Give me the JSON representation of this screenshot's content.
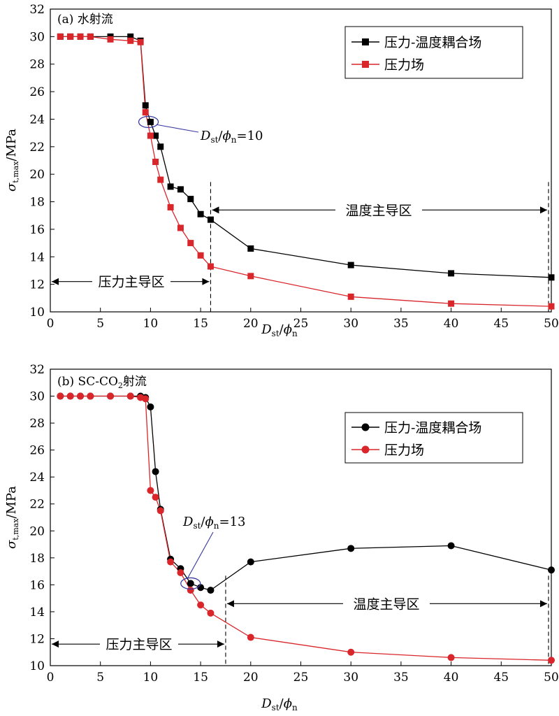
{
  "chart_data": [
    {
      "type": "line",
      "panel_label": "(a) 水射流",
      "xlabel_main": "D",
      "xlabel_sub": "st",
      "xlabel_slash": "/",
      "xlabel_phi": "ϕ",
      "xlabel_phi_sub": "n",
      "ylabel_sigma": "σ",
      "ylabel_sub": "t,max",
      "ylabel_unit": "/MPa",
      "xlim": [
        0,
        50
      ],
      "ylim": [
        10,
        32
      ],
      "xticks": [
        0,
        5,
        10,
        15,
        20,
        25,
        30,
        35,
        40,
        45,
        50
      ],
      "yticks": [
        10,
        12,
        14,
        16,
        18,
        20,
        22,
        24,
        26,
        28,
        30,
        32
      ],
      "grid": false,
      "legend_position": "top-right",
      "marker": "square",
      "series": [
        {
          "name": "压力-温度耦合场",
          "color": "#000000",
          "x": [
            1,
            2,
            3,
            4,
            6,
            8,
            9,
            9.5,
            10,
            10.5,
            11,
            12,
            13,
            14,
            15,
            16,
            20,
            30,
            40,
            50
          ],
          "y": [
            30,
            30,
            30,
            30,
            30,
            30,
            29.7,
            25,
            23.8,
            22.8,
            22,
            19.1,
            18.9,
            18.2,
            17.1,
            16.7,
            14.6,
            13.4,
            12.8,
            12.5
          ]
        },
        {
          "name": "压力场",
          "color": "#d9262b",
          "x": [
            1,
            2,
            3,
            4,
            6,
            8,
            9,
            9.5,
            10,
            10.5,
            11,
            12,
            13,
            14,
            15,
            16,
            20,
            30,
            40,
            50
          ],
          "y": [
            30,
            30,
            30,
            30,
            29.8,
            29.7,
            29.6,
            24.5,
            22.8,
            20.9,
            19.6,
            17.6,
            16.1,
            15,
            14.1,
            13.3,
            12.6,
            11.1,
            10.6,
            10.4
          ]
        }
      ],
      "annotations": {
        "point_main": "D",
        "point_sub": "st",
        "point_slash": "/",
        "point_phi": "ϕ",
        "point_phi_sub": "n",
        "point_value": "=10",
        "point_xy": [
          9.8,
          23.8
        ],
        "pressure_region": "压力主导区",
        "temp_region": "温度主导区",
        "divider_x": 16,
        "pressure_arrow_y": 12.2,
        "temp_arrow_y": 17.4
      }
    },
    {
      "type": "line",
      "panel_label_pre": "(b) SC-CO",
      "panel_label_sub": "2",
      "panel_label_post": "射流",
      "xlabel_main": "D",
      "xlabel_sub": "st",
      "xlabel_slash": "/",
      "xlabel_phi": "ϕ",
      "xlabel_phi_sub": "n",
      "ylabel_sigma": "σ",
      "ylabel_sub": "t,max",
      "ylabel_unit": "/MPa",
      "xlim": [
        0,
        50
      ],
      "ylim": [
        10,
        32
      ],
      "xticks": [
        0,
        5,
        10,
        15,
        20,
        25,
        30,
        35,
        40,
        45,
        50
      ],
      "yticks": [
        10,
        12,
        14,
        16,
        18,
        20,
        22,
        24,
        26,
        28,
        30,
        32
      ],
      "grid": false,
      "legend_position": "top-right",
      "marker": "circle",
      "series": [
        {
          "name": "压力-温度耦合场",
          "color": "#000000",
          "x": [
            1,
            2,
            3,
            4,
            6,
            8,
            9,
            9.5,
            10,
            10.5,
            11,
            12,
            13,
            14,
            15,
            16,
            20,
            30,
            40,
            50
          ],
          "y": [
            30,
            30,
            30,
            30,
            30,
            30,
            30,
            29.9,
            29.2,
            24.4,
            21.6,
            17.9,
            17.2,
            16.1,
            15.8,
            15.6,
            17.7,
            18.7,
            18.9,
            17.1
          ]
        },
        {
          "name": "压力场",
          "color": "#d9262b",
          "x": [
            1,
            2,
            3,
            4,
            6,
            8,
            9,
            9.5,
            10,
            10.5,
            11,
            12,
            13,
            14,
            15,
            16,
            20,
            30,
            40,
            50
          ],
          "y": [
            30,
            30,
            30,
            30,
            30,
            30,
            29.9,
            29.8,
            23,
            22.5,
            21.5,
            17.7,
            16.9,
            15.6,
            14.5,
            13.9,
            12.1,
            11,
            10.6,
            10.4
          ]
        }
      ],
      "annotations": {
        "point_main": "D",
        "point_sub": "st",
        "point_slash": "/",
        "point_phi": "ϕ",
        "point_phi_sub": "n",
        "point_value": "=13",
        "point_xy": [
          14,
          16.1
        ],
        "pressure_region": "压力主导区",
        "temp_region": "温度主导区",
        "divider_x": 17.5,
        "pressure_arrow_y": 11.6,
        "temp_arrow_y": 14.6
      }
    }
  ]
}
